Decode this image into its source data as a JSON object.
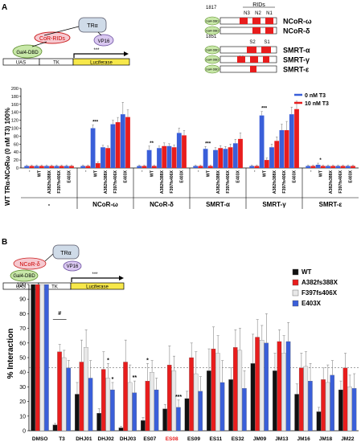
{
  "panels": {
    "a": {
      "label": "A",
      "schematic": {
        "factor1": "CoR-RIDs",
        "factor2": "TRα",
        "factor3": "VP16",
        "dbd": "Gal4-DBD",
        "uas": "UAS",
        "tk": "TK",
        "luc": "Luciferase",
        "arrow_label": "***"
      },
      "constructs": {
        "rid_header": "RIDs",
        "num_1817": "1817",
        "num_1851": "1851",
        "rid_labels_ncor": [
          "N3",
          "N2",
          "N1"
        ],
        "rid_labels_smrt": [
          "S2",
          "S1"
        ],
        "rid_label_s3": "S3",
        "dbd_short": "Gal4-DBD",
        "names": [
          "NCoR-ω",
          "NCoR-δ",
          "SMRT-α",
          "SMRT-γ",
          "SMRT-ε"
        ]
      }
    },
    "b": {
      "label": "B",
      "schematic": {
        "factor1": "NCoR-δ",
        "factor2": "TRα",
        "factor3": "VP16",
        "dbd": "Gal4-DBD",
        "uas": "UAS",
        "tk": "TK",
        "luc": "Luciferase",
        "arrow_label": "***"
      }
    }
  },
  "chart_data": [
    {
      "type": "bar",
      "panel": "A",
      "ylabel": "WT TRα-NCoRω (0 nM T3) 100%",
      "ylim": [
        0,
        200
      ],
      "yticks": [
        0,
        20,
        40,
        60,
        80,
        100,
        120,
        140,
        160,
        180,
        200
      ],
      "legend_position": "top-right",
      "group_labels": [
        "-",
        "NCoR-ω",
        "NCoR-δ",
        "SMRT-α",
        "SMRT-γ",
        "SMRT-ε"
      ],
      "bar_labels": [
        "-",
        "WT",
        "A382fs388X",
        "F397fs406X",
        "E403X"
      ],
      "series": [
        {
          "name": "0 nM T3",
          "color": "#3a5fd9",
          "values": [
            [
              5,
              5,
              5,
              5,
              5
            ],
            [
              5,
              100,
              52,
              110,
              135
            ],
            [
              5,
              45,
              50,
              55,
              88
            ],
            [
              5,
              48,
              45,
              48,
              62
            ],
            [
              5,
              132,
              52,
              95,
              135
            ],
            [
              5,
              8,
              5,
              5,
              5
            ]
          ],
          "errors": [
            [
              2,
              2,
              2,
              2,
              2
            ],
            [
              2,
              8,
              5,
              10,
              30
            ],
            [
              2,
              10,
              5,
              6,
              12
            ],
            [
              2,
              6,
              6,
              6,
              10
            ],
            [
              2,
              10,
              8,
              15,
              18
            ],
            [
              2,
              4,
              2,
              2,
              2
            ]
          ]
        },
        {
          "name": "10 nM T3",
          "color": "#e81d1d",
          "values": [
            [
              5,
              5,
              5,
              5,
              5
            ],
            [
              5,
              12,
              50,
              115,
              128
            ],
            [
              5,
              5,
              55,
              52,
              82
            ],
            [
              5,
              5,
              50,
              52,
              73
            ],
            [
              5,
              20,
              68,
              95,
              148
            ],
            [
              5,
              5,
              5,
              5,
              5
            ]
          ],
          "errors": [
            [
              2,
              2,
              2,
              2,
              2
            ],
            [
              2,
              3,
              5,
              12,
              18
            ],
            [
              2,
              2,
              8,
              6,
              12
            ],
            [
              2,
              2,
              6,
              8,
              15
            ],
            [
              2,
              5,
              10,
              22,
              20
            ],
            [
              2,
              2,
              2,
              2,
              2
            ]
          ]
        }
      ],
      "significance": [
        {
          "group": 1,
          "bar": 1,
          "label": "***"
        },
        {
          "group": 2,
          "bar": 1,
          "label": "**"
        },
        {
          "group": 3,
          "bar": 1,
          "label": "***"
        },
        {
          "group": 4,
          "bar": 1,
          "label": "***"
        },
        {
          "group": 5,
          "bar": 1,
          "label": "*"
        }
      ]
    },
    {
      "type": "bar",
      "panel": "B",
      "ylabel": "% Interaction",
      "ylim": [
        0,
        100
      ],
      "yticks": [
        0,
        10,
        20,
        30,
        40,
        50,
        60,
        70,
        80,
        90,
        100
      ],
      "reference_line": 43,
      "legend_position": "top-right",
      "categories": [
        "DMSO",
        "T3",
        "DHJ01",
        "DHJ02",
        "DHJ03",
        "ES07",
        "ES08",
        "ES09",
        "ES11",
        "ES32",
        "JM09",
        "JM13",
        "JM16",
        "JM18",
        "JM22"
      ],
      "highlight_category": "ES08",
      "highlight_color": "#e81d1d",
      "series": [
        {
          "name": "WT",
          "color": "#111111",
          "values": [
            100,
            4,
            25,
            12,
            2,
            7,
            15,
            22,
            41,
            35,
            46,
            41,
            25,
            13,
            28
          ],
          "errors": [
            0,
            1,
            8,
            3,
            1,
            2,
            3,
            5,
            15,
            8,
            20,
            12,
            7,
            3,
            6
          ]
        },
        {
          "name": "A382fs388X",
          "color": "#e81d1d",
          "values": [
            100,
            54,
            47,
            42,
            47,
            34,
            45,
            50,
            56,
            57,
            64,
            61,
            43,
            35,
            43
          ],
          "errors": [
            0,
            5,
            15,
            12,
            15,
            12,
            13,
            10,
            15,
            12,
            12,
            8,
            10,
            8,
            10
          ]
        },
        {
          "name": "F397fs406X",
          "color": "#e8e8e8",
          "values": [
            100,
            50,
            57,
            36,
            33,
            40,
            41,
            39,
            53,
            55,
            62,
            53,
            44,
            33,
            30
          ],
          "errors": [
            0,
            5,
            12,
            10,
            12,
            8,
            10,
            15,
            12,
            15,
            10,
            12,
            10,
            12,
            8
          ]
        },
        {
          "name": "E403X",
          "color": "#3a5fd9",
          "values": [
            100,
            43,
            36,
            28,
            26,
            28,
            16,
            27,
            33,
            29,
            60,
            61,
            34,
            38,
            29
          ],
          "errors": [
            0,
            5,
            12,
            5,
            8,
            8,
            5,
            10,
            15,
            12,
            20,
            13,
            12,
            10,
            10
          ]
        }
      ],
      "significance": [
        {
          "cat": 1,
          "bar": 1,
          "label": "#"
        },
        {
          "cat": 3,
          "bar": 2,
          "label": "*"
        },
        {
          "cat": 3,
          "bar": 3,
          "label": "*"
        },
        {
          "cat": 4,
          "bar": 3,
          "label": "**"
        },
        {
          "cat": 5,
          "bar": 1,
          "label": "*"
        },
        {
          "cat": 6,
          "bar": 3,
          "label": "***"
        }
      ]
    }
  ]
}
